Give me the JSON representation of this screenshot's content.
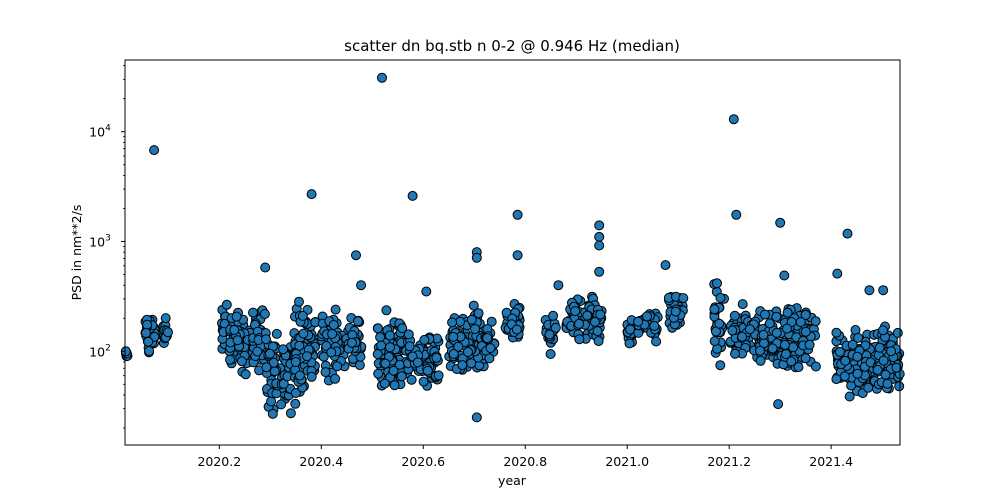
{
  "chart_data": {
    "type": "scatter",
    "title": "scatter dn bq.stb n 0-2 @ 0.946 Hz (median)",
    "xlabel": "year",
    "ylabel": "PSD in nm**2/s",
    "xlim": [
      2020.015,
      2021.535
    ],
    "ylim": [
      14,
      45000
    ],
    "yscale": "log",
    "grid": false,
    "marker_color": "#1f77b4",
    "marker_edge_color": "#000000",
    "x_ticks": [
      {
        "value": 2020.2,
        "label": "2020.2"
      },
      {
        "value": 2020.4,
        "label": "2020.4"
      },
      {
        "value": 2020.6,
        "label": "2020.6"
      },
      {
        "value": 2020.8,
        "label": "2020.8"
      },
      {
        "value": 2021.0,
        "label": "2021.0"
      },
      {
        "value": 2021.2,
        "label": "2021.2"
      },
      {
        "value": 2021.4,
        "label": "2021.4"
      }
    ],
    "y_ticks": [
      {
        "value": 100,
        "base": "10",
        "exp": "2"
      },
      {
        "value": 1000,
        "base": "10",
        "exp": "3"
      },
      {
        "value": 10000,
        "base": "10",
        "exp": "4"
      }
    ],
    "clusters": [
      {
        "x": [
          2020.015,
          2020.02
        ],
        "ylo": 85,
        "yhi": 105,
        "n": 8
      },
      {
        "x": [
          2020.055,
          2020.075
        ],
        "ylo": 88,
        "yhi": 250,
        "n": 40
      },
      {
        "x": [
          2020.09,
          2020.1
        ],
        "ylo": 90,
        "yhi": 250,
        "n": 18
      },
      {
        "x": [
          2020.205,
          2020.215
        ],
        "ylo": 75,
        "yhi": 340,
        "n": 22
      },
      {
        "x": [
          2020.22,
          2020.29
        ],
        "ylo": 45,
        "yhi": 330,
        "n": 110
      },
      {
        "x": [
          2020.29,
          2020.345
        ],
        "ylo": 20,
        "yhi": 190,
        "n": 75
      },
      {
        "x": [
          2020.345,
          2020.39
        ],
        "ylo": 28,
        "yhi": 350,
        "n": 85
      },
      {
        "x": [
          2020.4,
          2020.48
        ],
        "ylo": 50,
        "yhi": 280,
        "n": 95
      },
      {
        "x": [
          2020.51,
          2020.57
        ],
        "ylo": 33,
        "yhi": 280,
        "n": 90
      },
      {
        "x": [
          2020.57,
          2020.63
        ],
        "ylo": 42,
        "yhi": 180,
        "n": 75
      },
      {
        "x": [
          2020.65,
          2020.72
        ],
        "ylo": 45,
        "yhi": 300,
        "n": 95
      },
      {
        "x": [
          2020.72,
          2020.74
        ],
        "ylo": 60,
        "yhi": 240,
        "n": 20
      },
      {
        "x": [
          2020.76,
          2020.79
        ],
        "ylo": 100,
        "yhi": 300,
        "n": 35
      },
      {
        "x": [
          2020.84,
          2020.86
        ],
        "ylo": 80,
        "yhi": 310,
        "n": 20
      },
      {
        "x": [
          2020.88,
          2020.95
        ],
        "ylo": 95,
        "yhi": 450,
        "n": 70
      },
      {
        "x": [
          2021.0,
          2021.01
        ],
        "ylo": 95,
        "yhi": 230,
        "n": 15
      },
      {
        "x": [
          2021.02,
          2021.06
        ],
        "ylo": 115,
        "yhi": 260,
        "n": 30
      },
      {
        "x": [
          2021.08,
          2021.11
        ],
        "ylo": 135,
        "yhi": 370,
        "n": 30
      },
      {
        "x": [
          2021.17,
          2021.19
        ],
        "ylo": 60,
        "yhi": 500,
        "n": 30
      },
      {
        "x": [
          2021.2,
          2021.26
        ],
        "ylo": 70,
        "yhi": 310,
        "n": 60
      },
      {
        "x": [
          2021.26,
          2021.37
        ],
        "ylo": 58,
        "yhi": 300,
        "n": 140
      },
      {
        "x": [
          2021.41,
          2021.49
        ],
        "ylo": 34,
        "yhi": 180,
        "n": 150
      },
      {
        "x": [
          2021.49,
          2021.535
        ],
        "ylo": 38,
        "yhi": 200,
        "n": 80
      }
    ],
    "outliers": [
      {
        "x": 2020.072,
        "y": 6800
      },
      {
        "x": 2020.29,
        "y": 580
      },
      {
        "x": 2020.381,
        "y": 2700
      },
      {
        "x": 2020.468,
        "y": 750
      },
      {
        "x": 2020.478,
        "y": 400
      },
      {
        "x": 2020.519,
        "y": 31000
      },
      {
        "x": 2020.579,
        "y": 2600
      },
      {
        "x": 2020.606,
        "y": 350
      },
      {
        "x": 2020.705,
        "y": 800
      },
      {
        "x": 2020.705,
        "y": 710
      },
      {
        "x": 2020.705,
        "y": 25
      },
      {
        "x": 2020.785,
        "y": 1750
      },
      {
        "x": 2020.785,
        "y": 750
      },
      {
        "x": 2020.865,
        "y": 400
      },
      {
        "x": 2020.945,
        "y": 1400
      },
      {
        "x": 2020.945,
        "y": 1100
      },
      {
        "x": 2020.945,
        "y": 920
      },
      {
        "x": 2020.945,
        "y": 530
      },
      {
        "x": 2021.075,
        "y": 610
      },
      {
        "x": 2021.209,
        "y": 13000
      },
      {
        "x": 2021.214,
        "y": 1750
      },
      {
        "x": 2021.3,
        "y": 1480
      },
      {
        "x": 2021.308,
        "y": 490
      },
      {
        "x": 2021.296,
        "y": 33
      },
      {
        "x": 2021.412,
        "y": 510
      },
      {
        "x": 2021.432,
        "y": 1180
      },
      {
        "x": 2021.475,
        "y": 360
      },
      {
        "x": 2021.502,
        "y": 360
      }
    ]
  }
}
